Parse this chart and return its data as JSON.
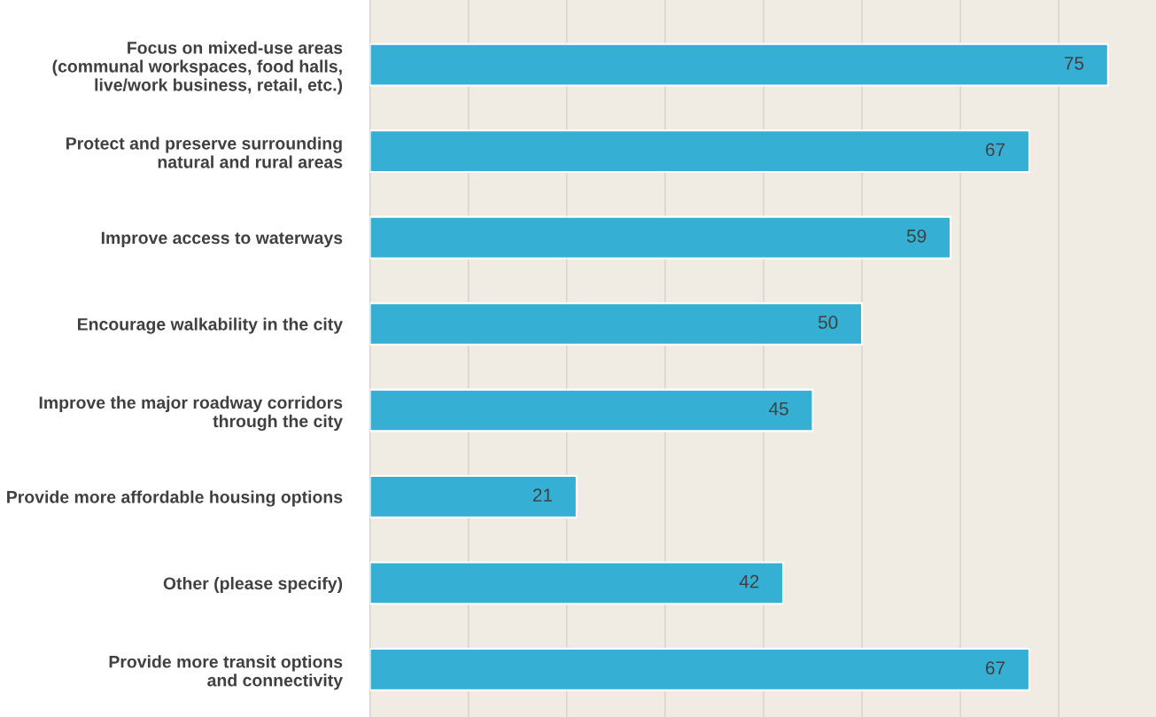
{
  "chart_data": {
    "type": "bar",
    "orientation": "horizontal",
    "data_labels": true,
    "categories": [
      "Focus on mixed-use areas\n(communal workspaces, food halls,\nlive/work business, retail, etc.)",
      "Protect and preserve surrounding\nnatural and rural areas",
      "Improve access to waterways",
      "Encourage walkability in the city",
      "Improve the major roadway corridors\nthrough the city",
      "Provide more affordable housing options",
      "Other (please specify)",
      "Provide more transit options\nand connectivity"
    ],
    "values": [
      75,
      67,
      59,
      50,
      45,
      21,
      42,
      67
    ],
    "color": "#35b0d4",
    "grid": "x",
    "legend": false
  }
}
